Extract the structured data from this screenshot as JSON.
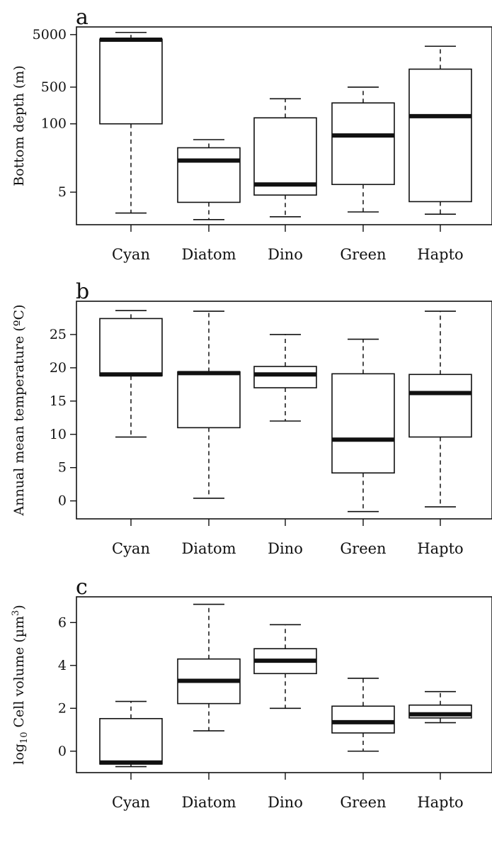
{
  "chart_data": [
    {
      "panel": "a",
      "type": "boxplot",
      "ylabel": "Bottom depth (m)",
      "yscale": "log",
      "ylim": [
        1.2,
        7000
      ],
      "yticks": [
        5,
        100,
        500,
        5000
      ],
      "categories": [
        "Cyan",
        "Diatom",
        "Dino",
        "Green",
        "Hapto"
      ],
      "boxes": [
        {
          "min": 2.0,
          "q1": 100,
          "median": 4000,
          "q3": 4100,
          "max": 5500
        },
        {
          "min": 1.5,
          "q1": 3.2,
          "median": 20,
          "q3": 35,
          "max": 50
        },
        {
          "min": 1.7,
          "q1": 4.4,
          "median": 7,
          "q3": 130,
          "max": 300
        },
        {
          "min": 2.1,
          "q1": 7,
          "median": 60,
          "q3": 250,
          "max": 500
        },
        {
          "min": 1.9,
          "q1": 3.3,
          "median": 140,
          "q3": 1100,
          "max": 3000
        }
      ]
    },
    {
      "panel": "b",
      "type": "boxplot",
      "ylabel": "Annual mean temperature (ºC)",
      "yscale": "linear",
      "ylim": [
        -2.7,
        30
      ],
      "yticks": [
        0,
        5,
        10,
        15,
        20,
        25
      ],
      "categories": [
        "Cyan",
        "Diatom",
        "Dino",
        "Green",
        "Hapto"
      ],
      "boxes": [
        {
          "min": 9.6,
          "q1": 18.8,
          "median": 19.0,
          "q3": 27.4,
          "max": 28.6
        },
        {
          "min": 0.4,
          "q1": 11.0,
          "median": 19.2,
          "q3": 19.4,
          "max": 28.5
        },
        {
          "min": 12.0,
          "q1": 17.0,
          "median": 19.0,
          "q3": 20.2,
          "max": 25.0
        },
        {
          "min": -1.6,
          "q1": 4.2,
          "median": 9.2,
          "q3": 19.1,
          "max": 24.3
        },
        {
          "min": -0.9,
          "q1": 9.6,
          "median": 16.2,
          "q3": 19.0,
          "max": 28.5
        }
      ]
    },
    {
      "panel": "c",
      "type": "boxplot",
      "ylabel": "log10 Cell volume (µm3)",
      "yscale": "linear",
      "ylim": [
        -1.0,
        7.2
      ],
      "yticks": [
        0,
        2,
        4,
        6
      ],
      "categories": [
        "Cyan",
        "Diatom",
        "Dino",
        "Green",
        "Hapto"
      ],
      "boxes": [
        {
          "min": -0.72,
          "q1": -0.6,
          "median": -0.53,
          "q3": 1.52,
          "max": 2.32
        },
        {
          "min": 0.95,
          "q1": 2.22,
          "median": 3.28,
          "q3": 4.3,
          "max": 6.85
        },
        {
          "min": 2.0,
          "q1": 3.62,
          "median": 4.22,
          "q3": 4.78,
          "max": 5.9
        },
        {
          "min": 0.0,
          "q1": 0.85,
          "median": 1.35,
          "q3": 2.1,
          "max": 3.4
        },
        {
          "min": 1.33,
          "q1": 1.55,
          "median": 1.72,
          "q3": 2.15,
          "max": 2.78
        }
      ]
    }
  ]
}
